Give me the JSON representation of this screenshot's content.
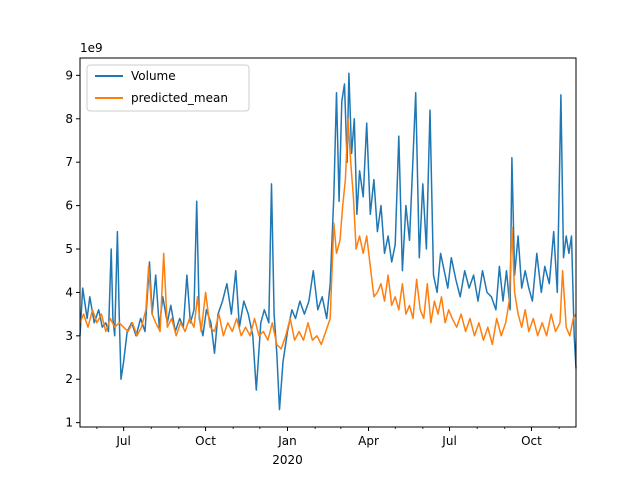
{
  "chart_data": {
    "type": "line",
    "title": "",
    "xlabel": "",
    "ylabel": "",
    "y_scale_label": "1e9",
    "xlim": [
      "2019-05-13",
      "2020-11-20"
    ],
    "ylim": [
      0.9,
      9.4
    ],
    "y_unit_multiplier": 1000000000,
    "grid": false,
    "legend": {
      "placement": "upper-left",
      "entries": [
        "Volume",
        "predicted_mean"
      ]
    },
    "x_ticks": [
      {
        "date": "2019-07-01",
        "label": "Jul"
      },
      {
        "date": "2019-10-01",
        "label": "Oct"
      },
      {
        "date": "2020-01-01",
        "label": "Jan",
        "sublabel": "2020"
      },
      {
        "date": "2020-04-01",
        "label": "Apr"
      },
      {
        "date": "2020-07-01",
        "label": "Jul"
      },
      {
        "date": "2020-10-01",
        "label": "Oct"
      }
    ],
    "y_ticks": [
      1,
      2,
      3,
      4,
      5,
      6,
      7,
      8,
      9
    ],
    "series": [
      {
        "name": "Volume",
        "color": "#1f77b4",
        "points": [
          [
            "2019-05-13",
            3.0
          ],
          [
            "2019-05-16",
            4.1
          ],
          [
            "2019-05-21",
            3.4
          ],
          [
            "2019-05-24",
            3.9
          ],
          [
            "2019-05-29",
            3.3
          ],
          [
            "2019-06-03",
            3.6
          ],
          [
            "2019-06-07",
            3.2
          ],
          [
            "2019-06-11",
            3.3
          ],
          [
            "2019-06-14",
            3.1
          ],
          [
            "2019-06-17",
            5.0
          ],
          [
            "2019-06-19",
            3.4
          ],
          [
            "2019-06-21",
            3.0
          ],
          [
            "2019-06-24",
            5.4
          ],
          [
            "2019-06-26",
            3.5
          ],
          [
            "2019-06-28",
            2.0
          ],
          [
            "2019-07-01",
            2.4
          ],
          [
            "2019-07-05",
            3.1
          ],
          [
            "2019-07-10",
            3.3
          ],
          [
            "2019-07-15",
            3.0
          ],
          [
            "2019-07-20",
            3.4
          ],
          [
            "2019-07-25",
            3.1
          ],
          [
            "2019-07-30",
            4.7
          ],
          [
            "2019-08-02",
            3.5
          ],
          [
            "2019-08-06",
            4.4
          ],
          [
            "2019-08-10",
            3.2
          ],
          [
            "2019-08-14",
            3.9
          ],
          [
            "2019-08-19",
            3.3
          ],
          [
            "2019-08-23",
            3.7
          ],
          [
            "2019-08-28",
            3.1
          ],
          [
            "2019-09-02",
            3.4
          ],
          [
            "2019-09-06",
            3.2
          ],
          [
            "2019-09-10",
            4.4
          ],
          [
            "2019-09-14",
            3.3
          ],
          [
            "2019-09-18",
            3.6
          ],
          [
            "2019-09-21",
            6.1
          ],
          [
            "2019-09-24",
            3.4
          ],
          [
            "2019-09-28",
            3.0
          ],
          [
            "2019-10-02",
            3.6
          ],
          [
            "2019-10-07",
            3.3
          ],
          [
            "2019-10-11",
            2.6
          ],
          [
            "2019-10-15",
            3.5
          ],
          [
            "2019-10-20",
            3.8
          ],
          [
            "2019-10-25",
            4.2
          ],
          [
            "2019-10-30",
            3.5
          ],
          [
            "2019-11-04",
            4.5
          ],
          [
            "2019-11-08",
            3.2
          ],
          [
            "2019-11-13",
            3.8
          ],
          [
            "2019-11-18",
            3.5
          ],
          [
            "2019-11-23",
            3.0
          ],
          [
            "2019-11-27",
            1.75
          ],
          [
            "2019-12-02",
            3.3
          ],
          [
            "2019-12-06",
            3.6
          ],
          [
            "2019-12-11",
            3.3
          ],
          [
            "2019-12-14",
            6.5
          ],
          [
            "2019-12-17",
            3.5
          ],
          [
            "2019-12-20",
            2.6
          ],
          [
            "2019-12-23",
            1.3
          ],
          [
            "2019-12-27",
            2.4
          ],
          [
            "2020-01-01",
            3.1
          ],
          [
            "2020-01-06",
            3.6
          ],
          [
            "2020-01-10",
            3.4
          ],
          [
            "2020-01-15",
            3.8
          ],
          [
            "2020-01-20",
            3.5
          ],
          [
            "2020-01-25",
            3.8
          ],
          [
            "2020-01-30",
            4.5
          ],
          [
            "2020-02-04",
            3.6
          ],
          [
            "2020-02-09",
            3.9
          ],
          [
            "2020-02-14",
            3.4
          ],
          [
            "2020-02-18",
            4.2
          ],
          [
            "2020-02-22",
            6.2
          ],
          [
            "2020-02-25",
            8.6
          ],
          [
            "2020-02-28",
            6.1
          ],
          [
            "2020-03-02",
            8.4
          ],
          [
            "2020-03-05",
            8.8
          ],
          [
            "2020-03-08",
            7.0
          ],
          [
            "2020-03-10",
            9.05
          ],
          [
            "2020-03-13",
            7.2
          ],
          [
            "2020-03-16",
            8.0
          ],
          [
            "2020-03-19",
            5.8
          ],
          [
            "2020-03-22",
            6.8
          ],
          [
            "2020-03-26",
            6.2
          ],
          [
            "2020-03-30",
            7.9
          ],
          [
            "2020-04-03",
            5.8
          ],
          [
            "2020-04-07",
            6.6
          ],
          [
            "2020-04-11",
            5.4
          ],
          [
            "2020-04-15",
            6.0
          ],
          [
            "2020-04-19",
            4.9
          ],
          [
            "2020-04-23",
            5.3
          ],
          [
            "2020-04-27",
            4.7
          ],
          [
            "2020-05-01",
            5.1
          ],
          [
            "2020-05-05",
            7.6
          ],
          [
            "2020-05-09",
            4.5
          ],
          [
            "2020-05-13",
            6.0
          ],
          [
            "2020-05-17",
            5.2
          ],
          [
            "2020-05-21",
            7.1
          ],
          [
            "2020-05-24",
            8.6
          ],
          [
            "2020-05-28",
            4.8
          ],
          [
            "2020-06-01",
            6.5
          ],
          [
            "2020-06-05",
            5.0
          ],
          [
            "2020-06-09",
            8.2
          ],
          [
            "2020-06-13",
            4.4
          ],
          [
            "2020-06-17",
            4.0
          ],
          [
            "2020-06-21",
            4.9
          ],
          [
            "2020-06-25",
            4.5
          ],
          [
            "2020-06-29",
            4.1
          ],
          [
            "2020-07-03",
            4.8
          ],
          [
            "2020-07-08",
            4.3
          ],
          [
            "2020-07-13",
            3.9
          ],
          [
            "2020-07-18",
            4.5
          ],
          [
            "2020-07-23",
            4.1
          ],
          [
            "2020-07-28",
            4.4
          ],
          [
            "2020-08-02",
            3.8
          ],
          [
            "2020-08-07",
            4.5
          ],
          [
            "2020-08-12",
            4.0
          ],
          [
            "2020-08-17",
            3.9
          ],
          [
            "2020-08-22",
            3.6
          ],
          [
            "2020-08-26",
            4.6
          ],
          [
            "2020-08-30",
            3.8
          ],
          [
            "2020-09-03",
            4.5
          ],
          [
            "2020-09-07",
            3.6
          ],
          [
            "2020-09-09",
            7.1
          ],
          [
            "2020-09-12",
            4.4
          ],
          [
            "2020-09-16",
            5.3
          ],
          [
            "2020-09-20",
            4.1
          ],
          [
            "2020-09-24",
            4.5
          ],
          [
            "2020-09-28",
            4.1
          ],
          [
            "2020-10-02",
            3.8
          ],
          [
            "2020-10-07",
            4.9
          ],
          [
            "2020-10-12",
            4.0
          ],
          [
            "2020-10-16",
            4.6
          ],
          [
            "2020-10-21",
            4.2
          ],
          [
            "2020-10-26",
            5.4
          ],
          [
            "2020-10-30",
            4.0
          ],
          [
            "2020-11-03",
            8.55
          ],
          [
            "2020-11-06",
            4.8
          ],
          [
            "2020-11-09",
            5.3
          ],
          [
            "2020-11-12",
            4.9
          ],
          [
            "2020-11-15",
            5.3
          ],
          [
            "2020-11-18",
            3.0
          ],
          [
            "2020-11-20",
            2.25
          ]
        ]
      },
      {
        "name": "predicted_mean",
        "color": "#ff7f0e",
        "points": [
          [
            "2019-05-13",
            3.3
          ],
          [
            "2019-05-17",
            3.5
          ],
          [
            "2019-05-22",
            3.2
          ],
          [
            "2019-05-27",
            3.6
          ],
          [
            "2019-06-01",
            3.3
          ],
          [
            "2019-06-06",
            3.5
          ],
          [
            "2019-06-11",
            3.1
          ],
          [
            "2019-06-16",
            3.4
          ],
          [
            "2019-06-21",
            3.2
          ],
          [
            "2019-06-26",
            3.3
          ],
          [
            "2019-07-01",
            3.2
          ],
          [
            "2019-07-06",
            3.1
          ],
          [
            "2019-07-11",
            3.3
          ],
          [
            "2019-07-16",
            3.0
          ],
          [
            "2019-07-21",
            3.2
          ],
          [
            "2019-07-26",
            3.6
          ],
          [
            "2019-07-29",
            4.6
          ],
          [
            "2019-08-02",
            3.5
          ],
          [
            "2019-08-06",
            3.3
          ],
          [
            "2019-08-11",
            3.1
          ],
          [
            "2019-08-15",
            4.9
          ],
          [
            "2019-08-19",
            3.2
          ],
          [
            "2019-08-24",
            3.4
          ],
          [
            "2019-08-29",
            3.0
          ],
          [
            "2019-09-03",
            3.3
          ],
          [
            "2019-09-08",
            3.1
          ],
          [
            "2019-09-13",
            3.4
          ],
          [
            "2019-09-18",
            3.2
          ],
          [
            "2019-09-22",
            3.9
          ],
          [
            "2019-09-26",
            3.1
          ],
          [
            "2019-10-01",
            4.0
          ],
          [
            "2019-10-06",
            3.2
          ],
          [
            "2019-10-11",
            3.1
          ],
          [
            "2019-10-16",
            3.5
          ],
          [
            "2019-10-21",
            3.0
          ],
          [
            "2019-10-26",
            3.3
          ],
          [
            "2019-10-31",
            3.1
          ],
          [
            "2019-11-05",
            3.4
          ],
          [
            "2019-11-10",
            3.0
          ],
          [
            "2019-11-15",
            3.2
          ],
          [
            "2019-11-20",
            3.0
          ],
          [
            "2019-11-25",
            3.4
          ],
          [
            "2019-11-30",
            3.0
          ],
          [
            "2019-12-05",
            3.1
          ],
          [
            "2019-12-10",
            2.9
          ],
          [
            "2019-12-15",
            3.3
          ],
          [
            "2019-12-20",
            2.8
          ],
          [
            "2019-12-25",
            2.7
          ],
          [
            "2019-12-30",
            3.0
          ],
          [
            "2020-01-04",
            3.4
          ],
          [
            "2020-01-09",
            2.9
          ],
          [
            "2020-01-14",
            3.1
          ],
          [
            "2020-01-19",
            2.9
          ],
          [
            "2020-01-24",
            3.3
          ],
          [
            "2020-01-29",
            2.9
          ],
          [
            "2020-02-03",
            3.0
          ],
          [
            "2020-02-08",
            2.8
          ],
          [
            "2020-02-13",
            3.1
          ],
          [
            "2020-02-18",
            3.4
          ],
          [
            "2020-02-22",
            5.6
          ],
          [
            "2020-02-25",
            4.9
          ],
          [
            "2020-02-29",
            5.2
          ],
          [
            "2020-03-03",
            6.0
          ],
          [
            "2020-03-06",
            6.6
          ],
          [
            "2020-03-09",
            8.0
          ],
          [
            "2020-03-12",
            7.0
          ],
          [
            "2020-03-15",
            6.2
          ],
          [
            "2020-03-18",
            5.0
          ],
          [
            "2020-03-22",
            5.3
          ],
          [
            "2020-03-26",
            4.9
          ],
          [
            "2020-03-30",
            5.3
          ],
          [
            "2020-04-03",
            4.6
          ],
          [
            "2020-04-07",
            3.9
          ],
          [
            "2020-04-11",
            4.0
          ],
          [
            "2020-04-15",
            4.2
          ],
          [
            "2020-04-19",
            3.8
          ],
          [
            "2020-04-23",
            4.4
          ],
          [
            "2020-04-27",
            3.7
          ],
          [
            "2020-05-01",
            3.9
          ],
          [
            "2020-05-05",
            3.6
          ],
          [
            "2020-05-09",
            4.2
          ],
          [
            "2020-05-13",
            3.5
          ],
          [
            "2020-05-17",
            3.7
          ],
          [
            "2020-05-21",
            3.4
          ],
          [
            "2020-05-25",
            4.3
          ],
          [
            "2020-05-29",
            3.6
          ],
          [
            "2020-06-02",
            3.4
          ],
          [
            "2020-06-06",
            4.2
          ],
          [
            "2020-06-10",
            3.3
          ],
          [
            "2020-06-14",
            3.8
          ],
          [
            "2020-06-18",
            3.5
          ],
          [
            "2020-06-22",
            3.9
          ],
          [
            "2020-06-26",
            3.3
          ],
          [
            "2020-06-30",
            3.6
          ],
          [
            "2020-07-04",
            3.4
          ],
          [
            "2020-07-09",
            3.2
          ],
          [
            "2020-07-14",
            3.5
          ],
          [
            "2020-07-19",
            3.1
          ],
          [
            "2020-07-24",
            3.4
          ],
          [
            "2020-07-29",
            3.0
          ],
          [
            "2020-08-03",
            3.3
          ],
          [
            "2020-08-08",
            2.9
          ],
          [
            "2020-08-13",
            3.2
          ],
          [
            "2020-08-18",
            2.8
          ],
          [
            "2020-08-23",
            3.4
          ],
          [
            "2020-08-28",
            3.0
          ],
          [
            "2020-09-02",
            3.3
          ],
          [
            "2020-09-06",
            3.8
          ],
          [
            "2020-09-09",
            5.5
          ],
          [
            "2020-09-12",
            4.0
          ],
          [
            "2020-09-16",
            3.5
          ],
          [
            "2020-09-20",
            3.2
          ],
          [
            "2020-09-24",
            3.6
          ],
          [
            "2020-09-28",
            3.1
          ],
          [
            "2020-10-03",
            3.4
          ],
          [
            "2020-10-08",
            3.0
          ],
          [
            "2020-10-13",
            3.3
          ],
          [
            "2020-10-18",
            3.0
          ],
          [
            "2020-10-23",
            3.5
          ],
          [
            "2020-10-28",
            3.1
          ],
          [
            "2020-11-02",
            3.3
          ],
          [
            "2020-11-05",
            4.5
          ],
          [
            "2020-11-09",
            3.2
          ],
          [
            "2020-11-13",
            3.0
          ],
          [
            "2020-11-17",
            3.4
          ],
          [
            "2020-11-20",
            3.5
          ]
        ]
      }
    ]
  }
}
